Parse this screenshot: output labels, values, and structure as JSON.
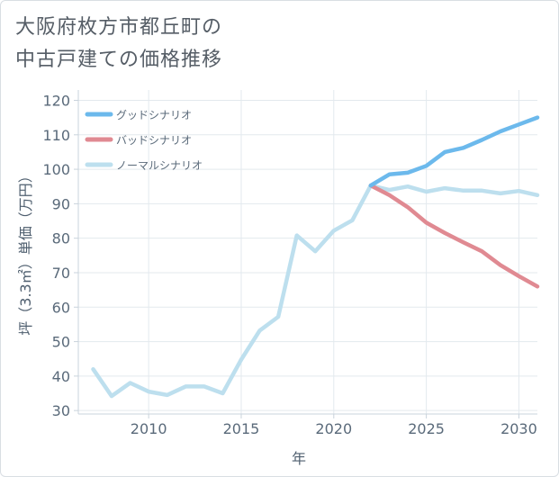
{
  "page": {
    "title_line1": "大阪府枚方市都丘町の",
    "title_line2": "中古戸建ての価格推移"
  },
  "chart_data": {
    "type": "line",
    "xlabel": "年",
    "ylabel": "坪（3.3㎡）単価（万円）",
    "xlim": [
      2006.2,
      2031
    ],
    "ylim": [
      29,
      123
    ],
    "x_ticks": [
      2010,
      2015,
      2020,
      2025,
      2030
    ],
    "y_ticks": [
      30,
      40,
      50,
      60,
      70,
      80,
      90,
      100,
      110,
      120
    ],
    "grid": true,
    "legend_position": "top-left",
    "series": [
      {
        "name": "グッドシナリオ",
        "color": "#6cb9ec",
        "x": [
          2022,
          2023,
          2024,
          2025,
          2026,
          2027,
          2028,
          2029,
          2030,
          2031
        ],
        "values": [
          95.3,
          98.5,
          99,
          101,
          105,
          106.2,
          108.5,
          111,
          113,
          115
        ]
      },
      {
        "name": "バッドシナリオ",
        "color": "#e08a92",
        "x": [
          2022,
          2023,
          2024,
          2025,
          2026,
          2027,
          2028,
          2029,
          2030,
          2031
        ],
        "values": [
          95.3,
          92.5,
          89,
          84.5,
          81.5,
          78.8,
          76.2,
          72.2,
          69,
          66
        ]
      },
      {
        "name": "ノーマルシナリオ",
        "color": "#bddfee",
        "x": [
          2007,
          2008,
          2009,
          2010,
          2011,
          2012,
          2013,
          2014,
          2015,
          2016,
          2017,
          2018,
          2019,
          2020,
          2021,
          2022,
          2023,
          2024,
          2025,
          2026,
          2027,
          2028,
          2029,
          2030,
          2031
        ],
        "values": [
          42,
          34.2,
          38,
          35.5,
          34.5,
          37,
          37,
          35,
          44.8,
          53.2,
          57.2,
          80.8,
          76.2,
          82.2,
          85.2,
          95.3,
          94,
          95,
          93.5,
          94.5,
          93.8,
          93.8,
          93,
          93.7,
          92.5
        ]
      }
    ]
  }
}
